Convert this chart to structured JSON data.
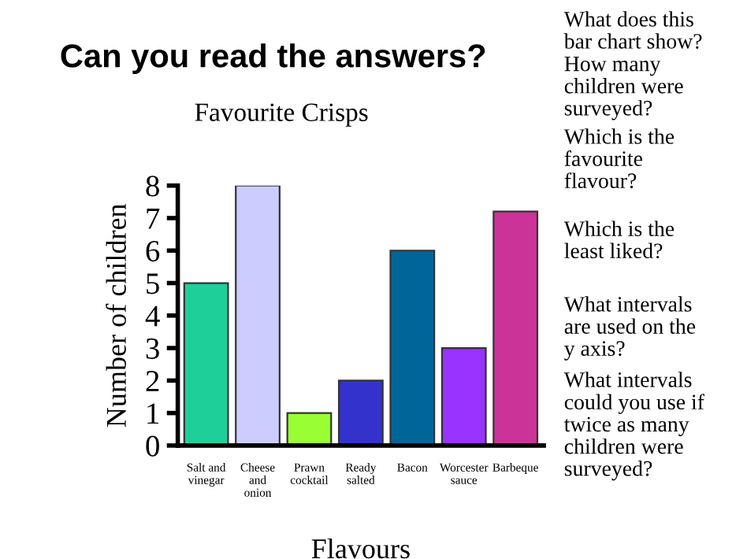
{
  "chart_data": {
    "type": "bar",
    "title": "Can you read the answers?",
    "subtitle": "Favourite Crisps",
    "xlabel": "Flavours",
    "ylabel": "Number of children",
    "categories": [
      "Salt and vinegar",
      "Cheese and onion",
      "Prawn cocktail",
      "Ready salted",
      "Bacon",
      "Worcester sauce",
      "Barbeque"
    ],
    "values": [
      5,
      8,
      1,
      2,
      6,
      3,
      7.2
    ],
    "colors": [
      "#1fcf9a",
      "#ccccff",
      "#99ff33",
      "#3333cc",
      "#006699",
      "#9933ff",
      "#cc3399"
    ],
    "ylim": [
      0,
      8
    ],
    "yticks": [
      0,
      1,
      2,
      3,
      4,
      5,
      6,
      7,
      8
    ],
    "grid": false,
    "annotations": [
      "What does this bar chart show?",
      "How many children were surveyed?",
      "Which is the favourite flavour?",
      "Which is the least liked?",
      "What intervals are used on the y axis?",
      "What intervals could you use if twice as many children were surveyed?"
    ]
  }
}
